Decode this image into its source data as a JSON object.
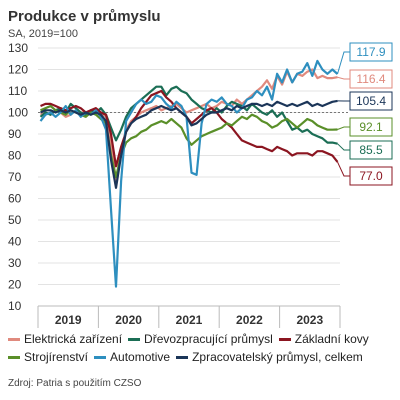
{
  "title": "Produkce v průmyslu",
  "subtitle": "SA, 2019=100",
  "source": "Zdroj: Patria s použitím CZSO",
  "chart_data": {
    "type": "line",
    "ylim": [
      10,
      130
    ],
    "yticks": [
      10,
      20,
      30,
      40,
      50,
      60,
      70,
      80,
      90,
      100,
      110,
      120,
      130
    ],
    "years": [
      "2019",
      "2020",
      "2021",
      "2022",
      "2023"
    ],
    "x_start": "2019-01",
    "x_end": "2023-12",
    "reference_line": 100,
    "series": [
      {
        "name": "Elektrická zařízení",
        "color": "#e08a7e",
        "end_label": "116.4",
        "values": [
          99,
          100,
          99,
          101,
          100,
          98,
          99,
          101,
          100,
          100,
          101,
          102,
          100,
          98,
          85,
          68,
          82,
          92,
          96,
          98,
          100,
          101,
          102,
          103,
          101,
          102,
          103,
          104,
          102,
          100,
          101,
          102,
          103,
          104,
          102,
          103,
          105,
          104,
          103,
          106,
          104,
          106,
          108,
          110,
          112,
          115,
          111,
          117,
          113,
          119,
          114,
          118,
          117,
          119,
          120,
          116,
          117,
          116,
          116,
          116.4
        ]
      },
      {
        "name": "Dřevozpracující průmysl",
        "color": "#1b6e55",
        "end_label": "85.5",
        "values": [
          98,
          100,
          99,
          101,
          102,
          100,
          104,
          102,
          100,
          99,
          101,
          100,
          102,
          99,
          93,
          87,
          92,
          98,
          102,
          104,
          106,
          108,
          110,
          112,
          112,
          108,
          111,
          112,
          110,
          109,
          106,
          104,
          102,
          101,
          100,
          102,
          100,
          103,
          105,
          104,
          103,
          101,
          104,
          102,
          100,
          99,
          101,
          98,
          100,
          96,
          92,
          93,
          91,
          92,
          90,
          89,
          88,
          86,
          86,
          85.5
        ]
      },
      {
        "name": "Základní kovy",
        "color": "#8b1520",
        "end_label": "77.0",
        "values": [
          103,
          104,
          104,
          103,
          102,
          101,
          102,
          103,
          102,
          100,
          101,
          102,
          100,
          99,
          90,
          75,
          84,
          91,
          95,
          98,
          102,
          105,
          108,
          109,
          110,
          107,
          105,
          102,
          100,
          98,
          95,
          97,
          99,
          101,
          102,
          100,
          97,
          95,
          93,
          90,
          87,
          86,
          85,
          84,
          84,
          83,
          82,
          84,
          83,
          82,
          80,
          81,
          81,
          81,
          80,
          82,
          82,
          81,
          80,
          77.0
        ]
      },
      {
        "name": "Strojírenství",
        "color": "#5a8f29",
        "end_label": "92.1",
        "values": [
          101,
          102,
          103,
          101,
          100,
          99,
          101,
          100,
          99,
          98,
          100,
          99,
          97,
          95,
          80,
          70,
          80,
          86,
          88,
          89,
          91,
          92,
          94,
          95,
          96,
          95,
          97,
          95,
          93,
          88,
          85,
          87,
          89,
          90,
          91,
          92,
          93,
          95,
          94,
          96,
          98,
          97,
          99,
          98,
          96,
          95,
          93,
          94,
          96,
          97,
          95,
          93,
          95,
          97,
          96,
          94,
          93,
          92,
          92,
          92.1
        ]
      },
      {
        "name": "Automotive",
        "color": "#2e8fbf",
        "end_label": "117.9",
        "values": [
          96,
          99,
          100,
          98,
          100,
          103,
          99,
          101,
          98,
          100,
          99,
          101,
          98,
          92,
          55,
          19,
          68,
          96,
          100,
          104,
          106,
          104,
          105,
          108,
          107,
          104,
          102,
          105,
          103,
          98,
          72,
          71,
          95,
          104,
          106,
          105,
          107,
          104,
          103,
          100,
          102,
          106,
          107,
          110,
          108,
          112,
          106,
          118,
          114,
          120,
          114,
          118,
          119,
          123,
          117,
          124,
          120,
          118,
          120,
          117.9
        ]
      },
      {
        "name": "Zpracovatelský průmysl, celkem",
        "color": "#1b3558",
        "end_label": "105.4",
        "values": [
          100,
          101,
          101,
          100,
          101,
          100,
          101,
          100,
          99,
          100,
          99,
          100,
          99,
          96,
          78,
          65,
          80,
          91,
          95,
          97,
          98,
          99,
          101,
          102,
          103,
          102,
          101,
          102,
          100,
          98,
          94,
          95,
          97,
          99,
          100,
          100,
          101,
          102,
          101,
          103,
          102,
          103,
          104,
          104,
          103,
          104,
          103,
          105,
          104,
          103,
          104,
          103,
          104,
          105,
          103,
          104,
          103,
          104,
          105,
          105.4
        ]
      }
    ]
  }
}
